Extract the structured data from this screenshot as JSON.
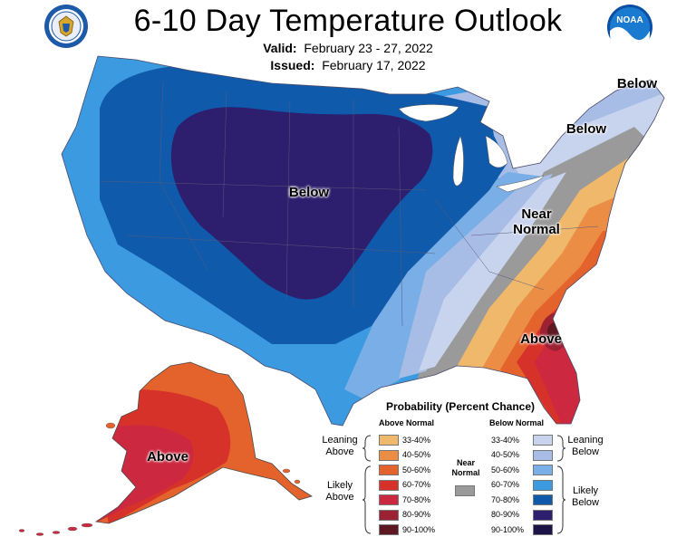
{
  "header": {
    "title": "6-10 Day Temperature Outlook",
    "valid_label": "Valid:",
    "valid_value": "February 23 - 27, 2022",
    "issued_label": "Issued:",
    "issued_value": "February 17, 2022"
  },
  "logos": {
    "left": "doc-seal-icon",
    "right": "noaa-logo-icon",
    "noaa_text": "NOAA"
  },
  "map_labels": {
    "below_center": "Below",
    "below_ne_top": "Below",
    "below_ne": "Below",
    "near_normal_1": "Near",
    "near_normal_2": "Normal",
    "above_se": "Above",
    "above_ak": "Above"
  },
  "legend": {
    "title": "Probability (Percent Chance)",
    "above_header": "Above Normal",
    "below_header": "Below Normal",
    "near_1": "Near",
    "near_2": "Normal",
    "leaning_above_1": "Leaning",
    "leaning_above_2": "Above",
    "likely_above_1": "Likely",
    "likely_above_2": "Above",
    "leaning_below_1": "Leaning",
    "leaning_below_2": "Below",
    "likely_below_1": "Likely",
    "likely_below_2": "Below",
    "above": [
      {
        "label": "33-40%",
        "color": "#f0b86a"
      },
      {
        "label": "40-50%",
        "color": "#eb8d45"
      },
      {
        "label": "50-60%",
        "color": "#e4622c"
      },
      {
        "label": "60-70%",
        "color": "#d7322a"
      },
      {
        "label": "70-80%",
        "color": "#cc2840"
      },
      {
        "label": "80-90%",
        "color": "#9b2133"
      },
      {
        "label": "90-100%",
        "color": "#5e1822"
      }
    ],
    "below": [
      {
        "label": "33-40%",
        "color": "#c8d3ee"
      },
      {
        "label": "40-50%",
        "color": "#a7bde6"
      },
      {
        "label": "50-60%",
        "color": "#7aaee6"
      },
      {
        "label": "60-70%",
        "color": "#3b9ae0"
      },
      {
        "label": "70-80%",
        "color": "#0f5aaa"
      },
      {
        "label": "80-90%",
        "color": "#2d1e6e"
      },
      {
        "label": "90-100%",
        "color": "#1c1448"
      }
    ],
    "near_color": "#9a9a9a"
  }
}
